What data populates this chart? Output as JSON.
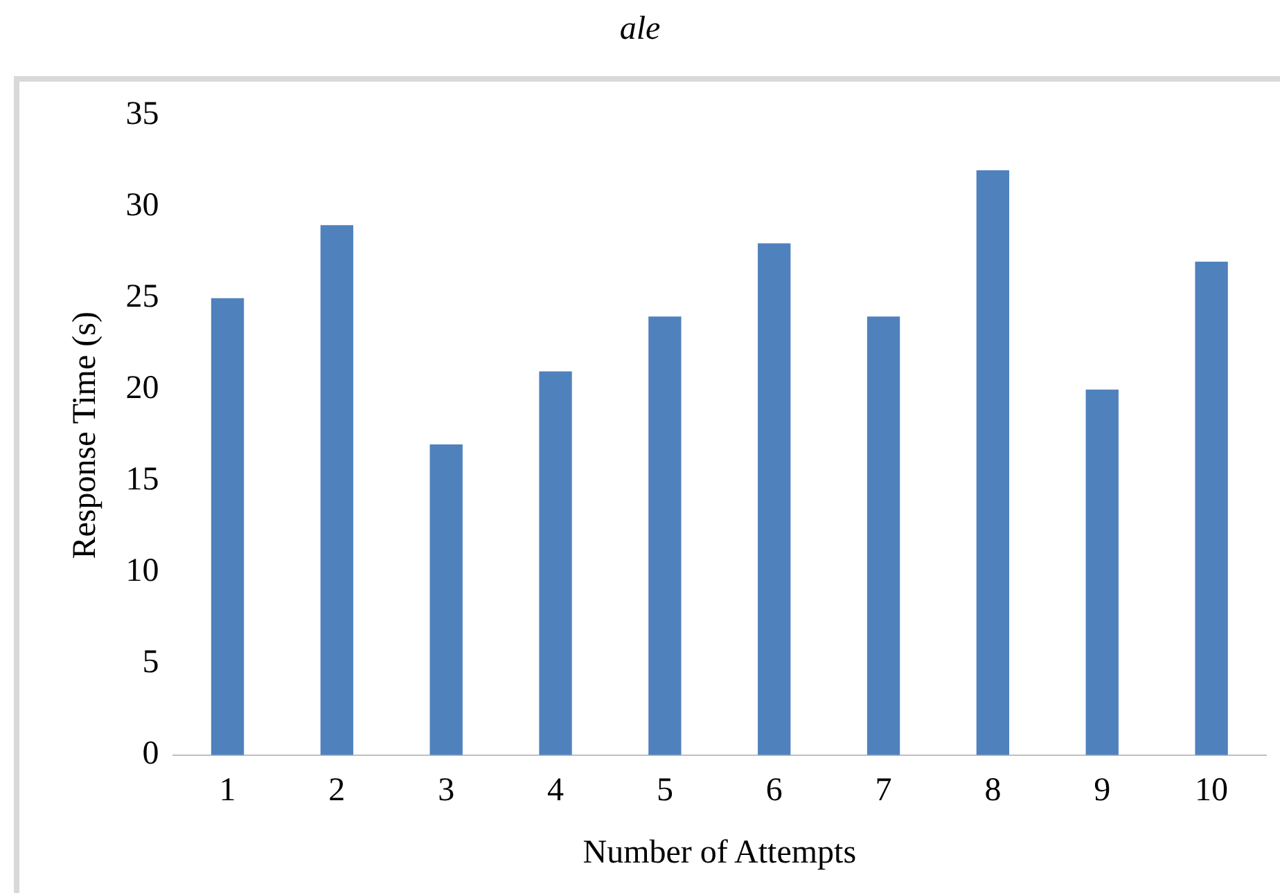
{
  "chart_data": {
    "type": "bar",
    "title": "ale",
    "xlabel": "Number of Attempts",
    "ylabel": "Response Time (s)",
    "categories": [
      "1",
      "2",
      "3",
      "4",
      "5",
      "6",
      "7",
      "8",
      "9",
      "10"
    ],
    "values": [
      25,
      29,
      17,
      21,
      24,
      28,
      24,
      32,
      20,
      27
    ],
    "color": "#4f81bd",
    "ylim": [
      0,
      35
    ],
    "yticks": [
      0,
      5,
      10,
      15,
      20,
      25,
      30,
      35
    ],
    "grid": false,
    "legend": false
  }
}
